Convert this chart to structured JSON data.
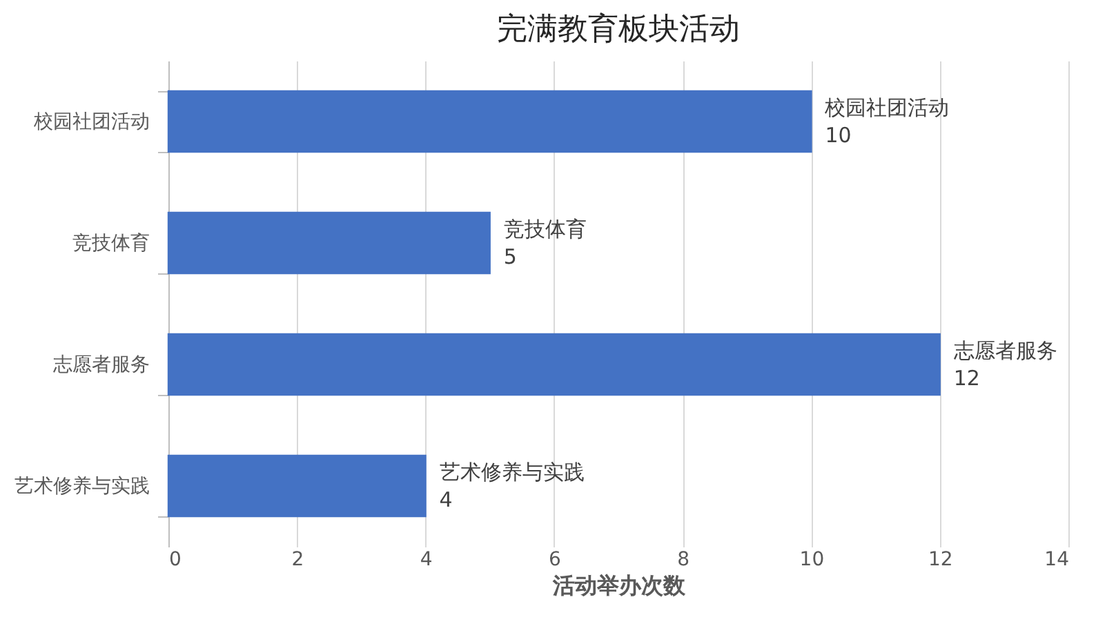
{
  "chart_data": {
    "type": "bar",
    "orientation": "horizontal",
    "title": "完满教育板块活动",
    "xlabel": "活动举办次数",
    "categories": [
      "校园社团活动",
      "竞技体育",
      "志愿者服务",
      "艺术修养与实践"
    ],
    "values": [
      10,
      5,
      12,
      4
    ],
    "color": "#4472c4",
    "xlim": [
      0,
      14
    ],
    "xticks": [
      0,
      2,
      4,
      6,
      8,
      10,
      12,
      14
    ],
    "grid": "x",
    "data_labels": true,
    "legend": false
  }
}
